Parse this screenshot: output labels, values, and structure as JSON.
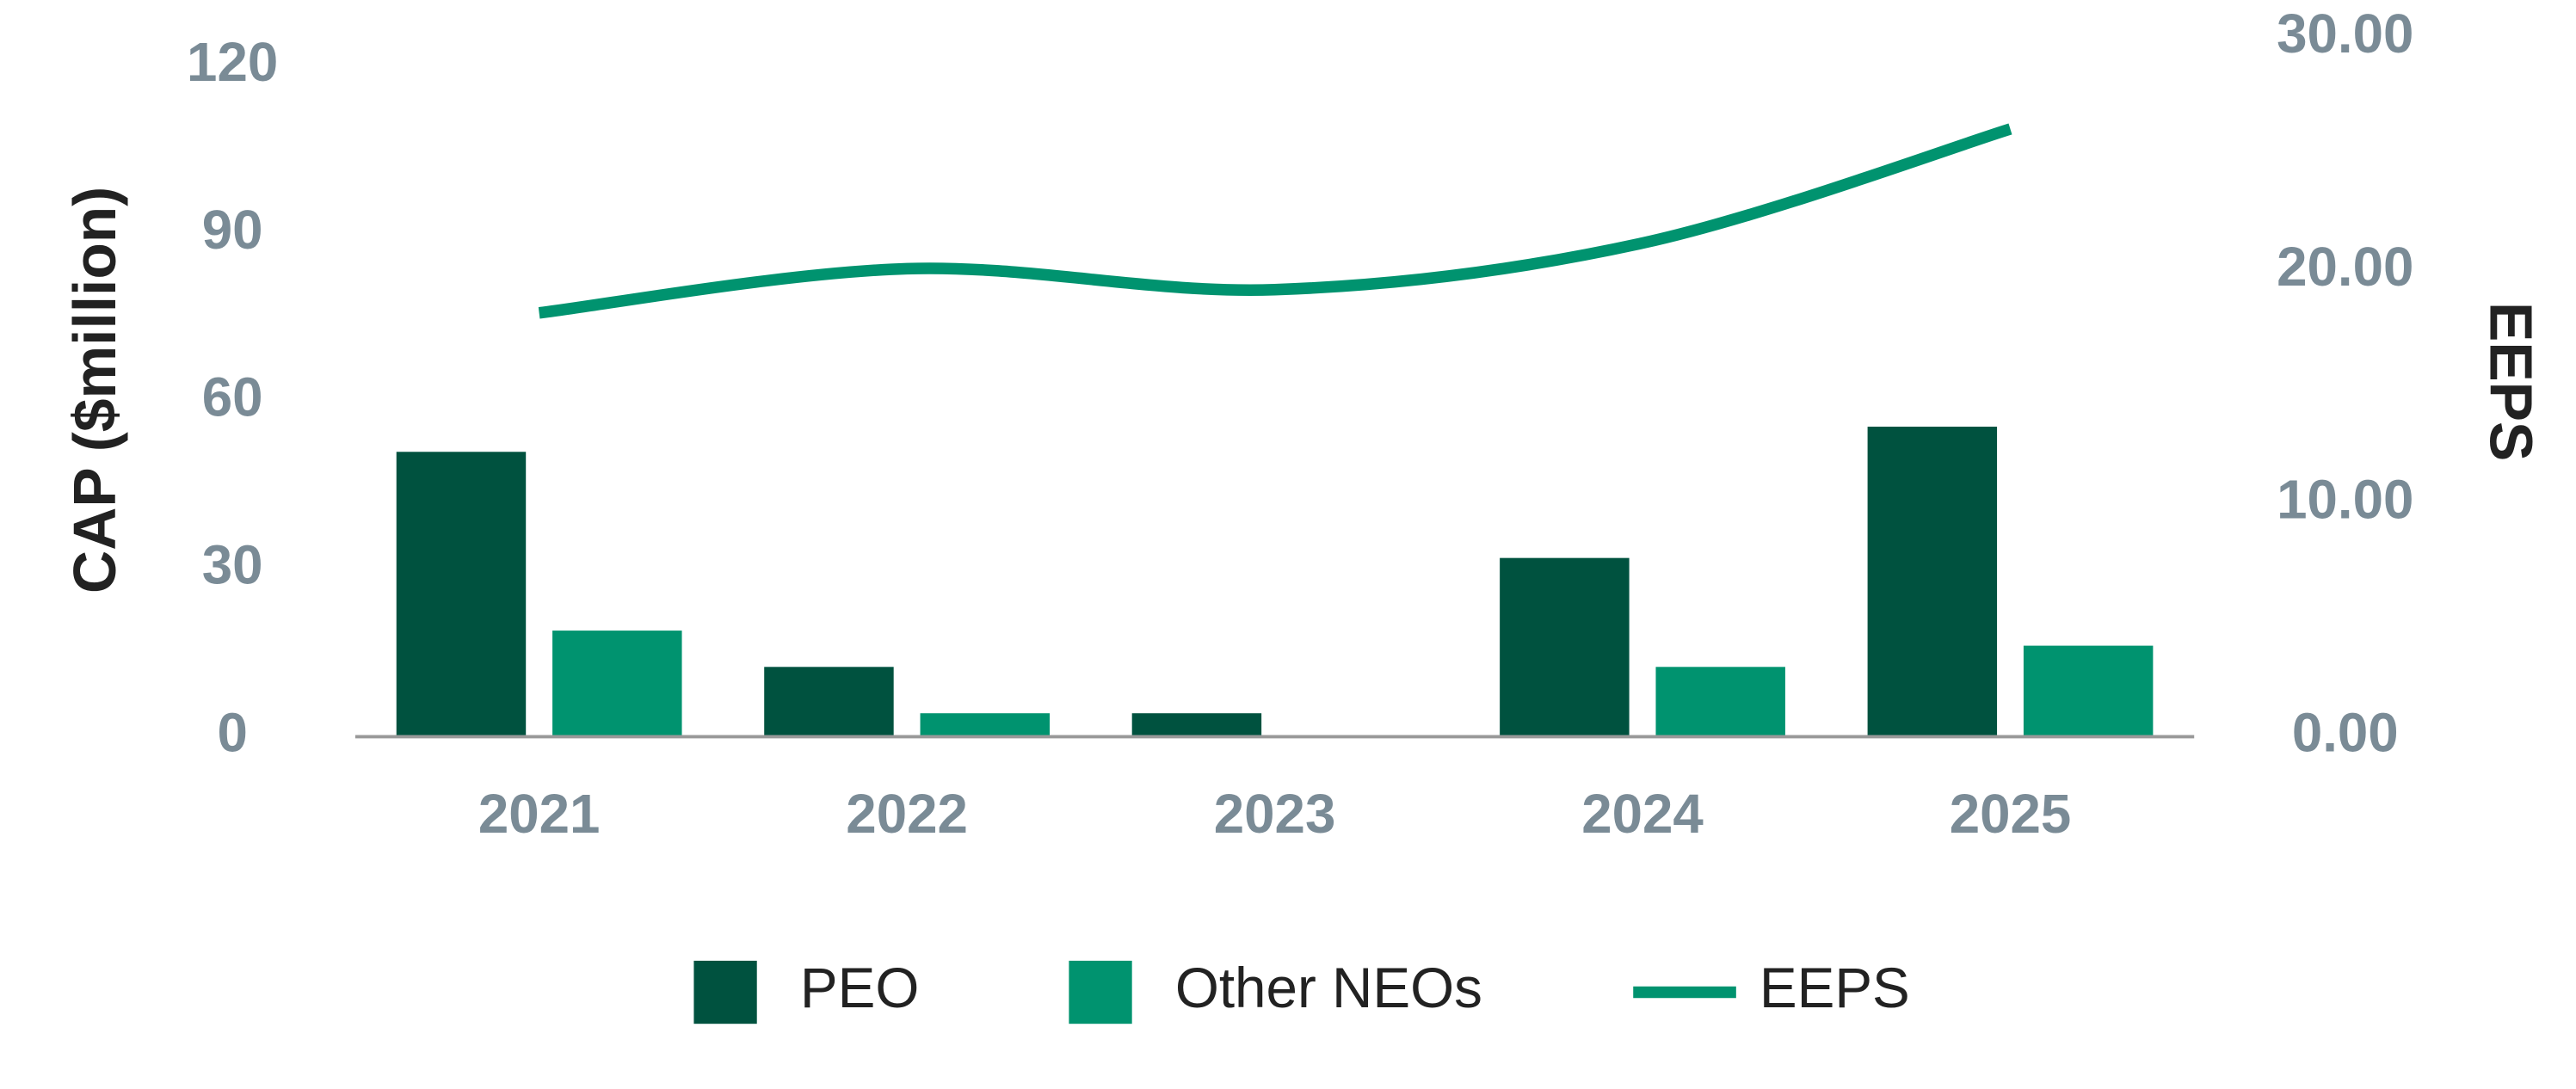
{
  "chart_data": {
    "type": "bar_line",
    "categories": [
      "2021",
      "2022",
      "2023",
      "2024",
      "2025"
    ],
    "y_label": "CAP ($million)",
    "y2_label": "EEPS",
    "ylim": [
      0,
      120
    ],
    "yticks": [
      0,
      30,
      60,
      90,
      120
    ],
    "y2lim": [
      0,
      30
    ],
    "y2ticks": [
      {
        "value": 0,
        "label": "0.00"
      },
      {
        "value": 10,
        "label": "10.00"
      },
      {
        "value": 20,
        "label": "20.00"
      },
      {
        "value": 30,
        "label": "30.00"
      }
    ],
    "series": [
      {
        "name": "PEO",
        "type": "bar",
        "color": "#00523f",
        "values": [
          51,
          12.5,
          4.2,
          32,
          55.5
        ]
      },
      {
        "name": "Other NEOs",
        "type": "bar",
        "color": "#00936f",
        "values": [
          19,
          4.2,
          0,
          12.5,
          16.3
        ]
      },
      {
        "name": "EEPS",
        "type": "line",
        "axis": "y2",
        "color": "#00936f",
        "values": [
          18.2,
          20.1,
          19.2,
          21.2,
          26.1
        ]
      }
    ]
  }
}
